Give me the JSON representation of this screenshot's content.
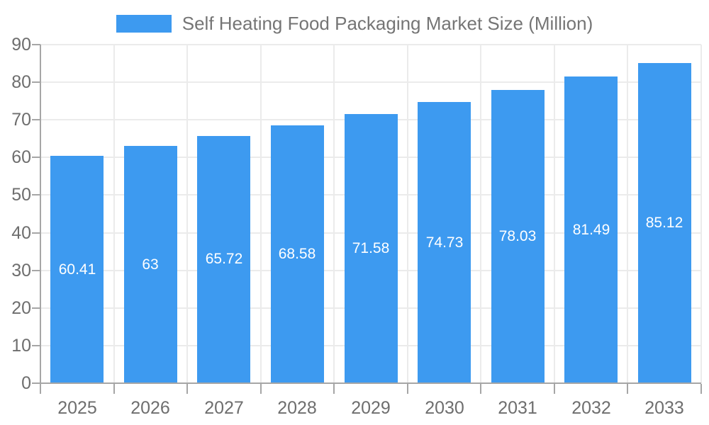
{
  "legend": {
    "label": "Self Heating Food Packaging Market Size (Million)",
    "marker_color": "#3D9AF0",
    "position": "top-center"
  },
  "chart_data": {
    "type": "bar",
    "title": "Self Heating Food Packaging Market Size (Million)",
    "categories": [
      "2025",
      "2026",
      "2027",
      "2028",
      "2029",
      "2030",
      "2031",
      "2032",
      "2033"
    ],
    "values": [
      60.41,
      63,
      65.72,
      68.58,
      71.58,
      74.73,
      78.03,
      81.49,
      85.12
    ],
    "value_labels": [
      "60.41",
      "63",
      "65.72",
      "68.58",
      "71.58",
      "74.73",
      "78.03",
      "81.49",
      "85.12"
    ],
    "xlabel": "",
    "ylabel": "",
    "ylim": [
      0,
      90
    ],
    "yticks": [
      0,
      10,
      20,
      30,
      40,
      50,
      60,
      70,
      80,
      90
    ],
    "grid": true,
    "grid_horizontal": true,
    "grid_vertical": true,
    "legend_position": "top",
    "bar_color": "#3D9AF0",
    "value_label_color": "#ffffff",
    "axis_color": "#a6a6a6",
    "grid_color": "#ebebeb",
    "tick_label_color": "#6e6e6e"
  }
}
